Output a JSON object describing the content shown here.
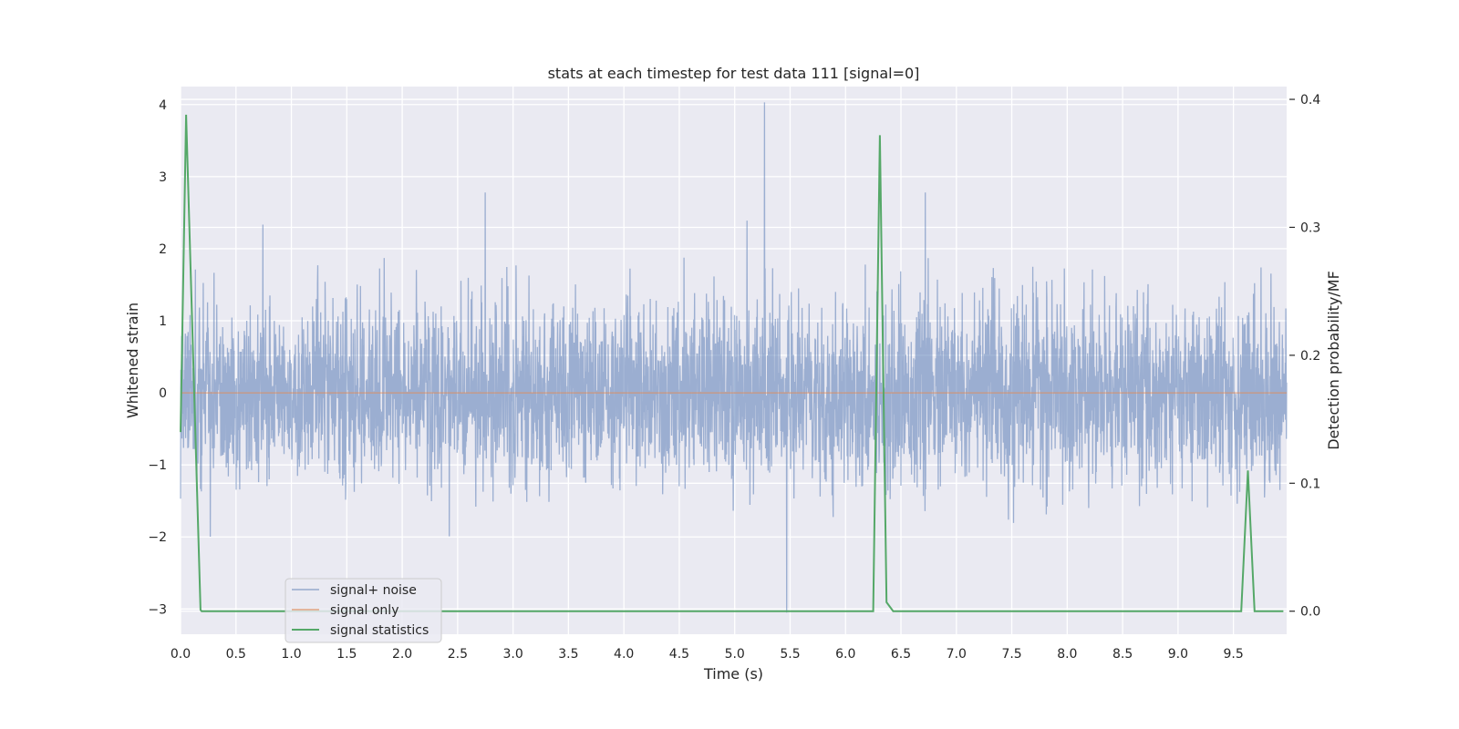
{
  "chart_data": {
    "type": "line",
    "title": "stats at each timestep for test data 111 [signal=0]",
    "xlabel": "Time (s)",
    "ylabel": "Whitened strain",
    "y2label": "Detection probability/MF",
    "xlim": [
      0.0,
      10.0
    ],
    "ylim": [
      -3.35,
      4.25
    ],
    "y2lim": [
      -0.018,
      0.41
    ],
    "xticks": [
      "0.0",
      "0.5",
      "1.0",
      "1.5",
      "2.0",
      "2.5",
      "3.0",
      "3.5",
      "4.0",
      "4.5",
      "5.0",
      "5.5",
      "6.0",
      "6.5",
      "7.0",
      "7.5",
      "8.0",
      "8.5",
      "9.0",
      "9.5"
    ],
    "yticks": [
      "−3",
      "−2",
      "−1",
      "0",
      "1",
      "2",
      "3",
      "4"
    ],
    "y2ticks": [
      "0.0",
      "0.1",
      "0.2",
      "0.3",
      "0.4"
    ],
    "grid": true,
    "legend_position": "lower-left",
    "colors": {
      "plot_bg": "#eaeaf2",
      "grid": "#ffffff",
      "noise": "#4c72b0",
      "signal": "#dd8452",
      "stats": "#55a868"
    },
    "series": [
      {
        "name": "signal+ noise",
        "axis": "left",
        "description_samples": 4096,
        "noise_std": 0.62,
        "peaks": [
          [
            5.27,
            4.03
          ],
          [
            5.47,
            -3.05
          ],
          [
            2.75,
            2.78
          ],
          [
            6.72,
            2.78
          ]
        ]
      },
      {
        "name": "signal only",
        "axis": "left",
        "x": [
          0.0,
          10.0
        ],
        "y": [
          0.0,
          0.0
        ]
      },
      {
        "name": "signal statistics",
        "axis": "right",
        "x": [
          0.0,
          0.05,
          0.18,
          0.19,
          0.25,
          6.25,
          6.31,
          6.37,
          6.43,
          6.5,
          9.57,
          9.63,
          9.69,
          9.75,
          9.95
        ],
        "y": [
          0.14,
          0.388,
          0.001,
          0.0,
          0.0,
          0.0,
          0.372,
          0.007,
          0.0,
          0.0,
          0.0,
          0.11,
          0.0,
          0.0,
          0.0
        ]
      }
    ]
  }
}
